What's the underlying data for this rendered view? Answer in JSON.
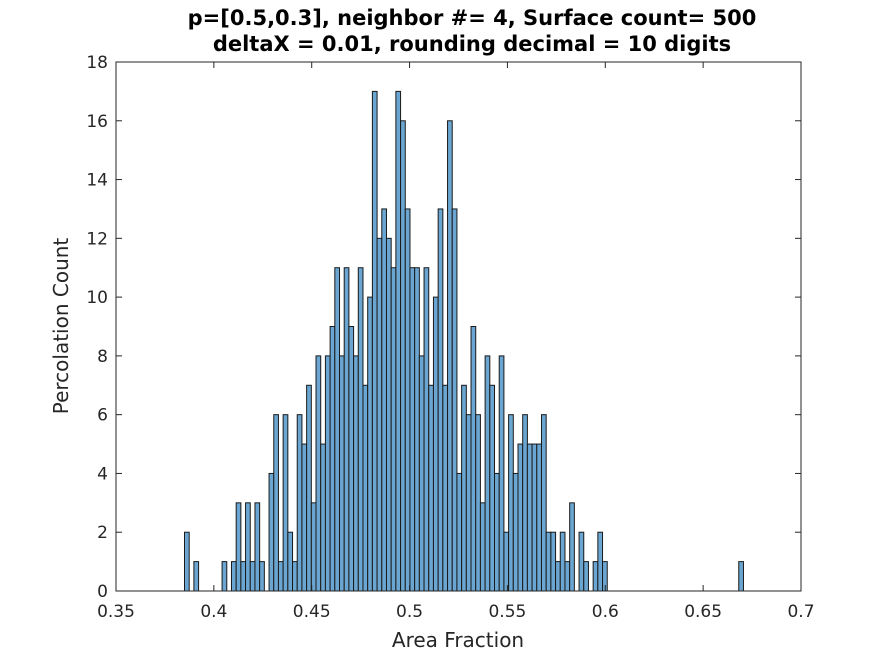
{
  "chart_data": {
    "type": "bar",
    "title_lines": [
      "p=[0.5,0.3], neighbor #= 4, Surface count= 500",
      "deltaX = 0.01, rounding decimal = 10 digits"
    ],
    "xlabel": "Area Fraction",
    "ylabel": "Percolation Count",
    "xlim": [
      0.35,
      0.7
    ],
    "ylim": [
      0,
      18
    ],
    "x_ticks": [
      "0.35",
      "0.4",
      "0.45",
      "0.5",
      "0.55",
      "0.6",
      "0.65",
      "0.7"
    ],
    "y_ticks": [
      "0",
      "2",
      "4",
      "6",
      "8",
      "10",
      "12",
      "14",
      "16",
      "18"
    ],
    "grid": false,
    "bin_start": 0.385,
    "bin_width": 0.0024,
    "values": [
      2,
      0,
      1,
      0,
      0,
      0,
      0,
      0,
      1,
      0,
      1,
      3,
      1,
      3,
      1,
      3,
      1,
      0,
      4,
      6,
      1,
      6,
      2,
      1,
      6,
      5,
      7,
      3,
      8,
      5,
      8,
      9,
      11,
      8,
      11,
      9,
      8,
      11,
      7,
      10,
      17,
      12,
      13,
      12,
      11,
      17,
      16,
      13,
      11,
      11,
      8,
      11,
      7,
      10,
      13,
      7,
      16,
      13,
      4,
      7,
      6,
      9,
      6,
      3,
      8,
      7,
      4,
      8,
      2,
      6,
      4,
      5,
      6,
      5,
      5,
      5,
      6,
      2,
      2,
      1,
      2,
      1,
      3,
      0,
      2,
      1,
      0,
      1,
      2,
      1,
      0,
      0,
      0,
      0,
      0,
      0,
      0,
      0,
      0,
      0,
      0,
      0,
      0,
      0,
      0,
      0,
      0,
      0,
      0,
      0,
      0,
      0,
      0,
      0,
      0,
      0,
      0,
      0,
      1
    ],
    "colors": {
      "bar_fill": "#6aa6d1",
      "bar_edge": "#1a1a1a",
      "axis": "#262626"
    }
  }
}
